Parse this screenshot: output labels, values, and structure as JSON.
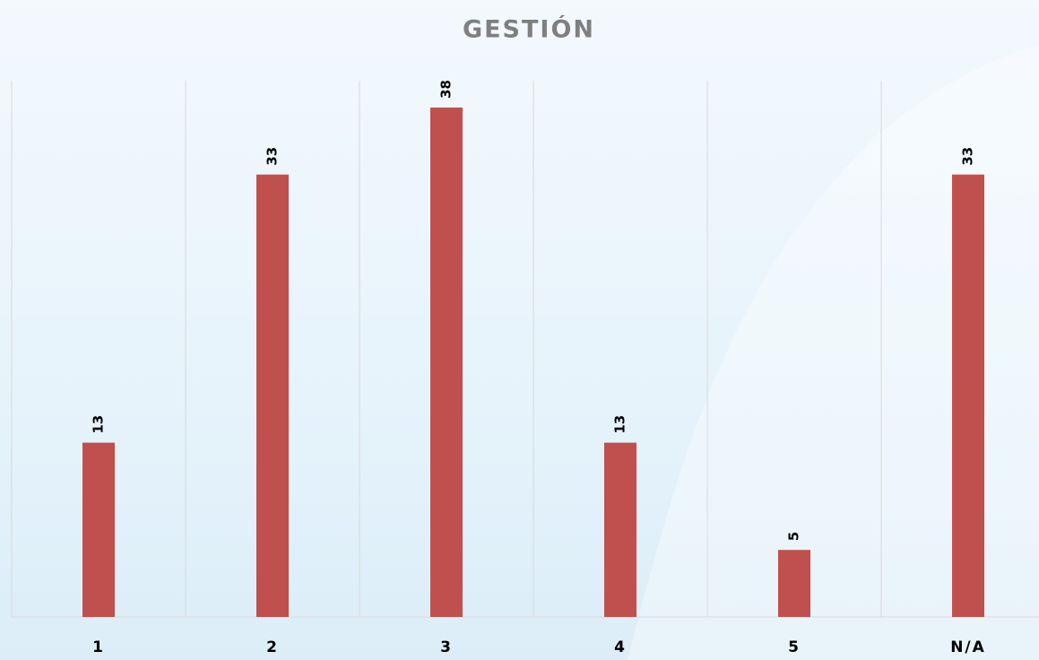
{
  "chart_data": {
    "type": "bar",
    "title": "GESTIÓN",
    "categories": [
      "1",
      "2",
      "3",
      "4",
      "5",
      "N/A"
    ],
    "values": [
      13,
      33,
      38,
      13,
      5,
      33
    ],
    "color": "#c0504d",
    "ylim": [
      0,
      40
    ],
    "grid": true
  }
}
